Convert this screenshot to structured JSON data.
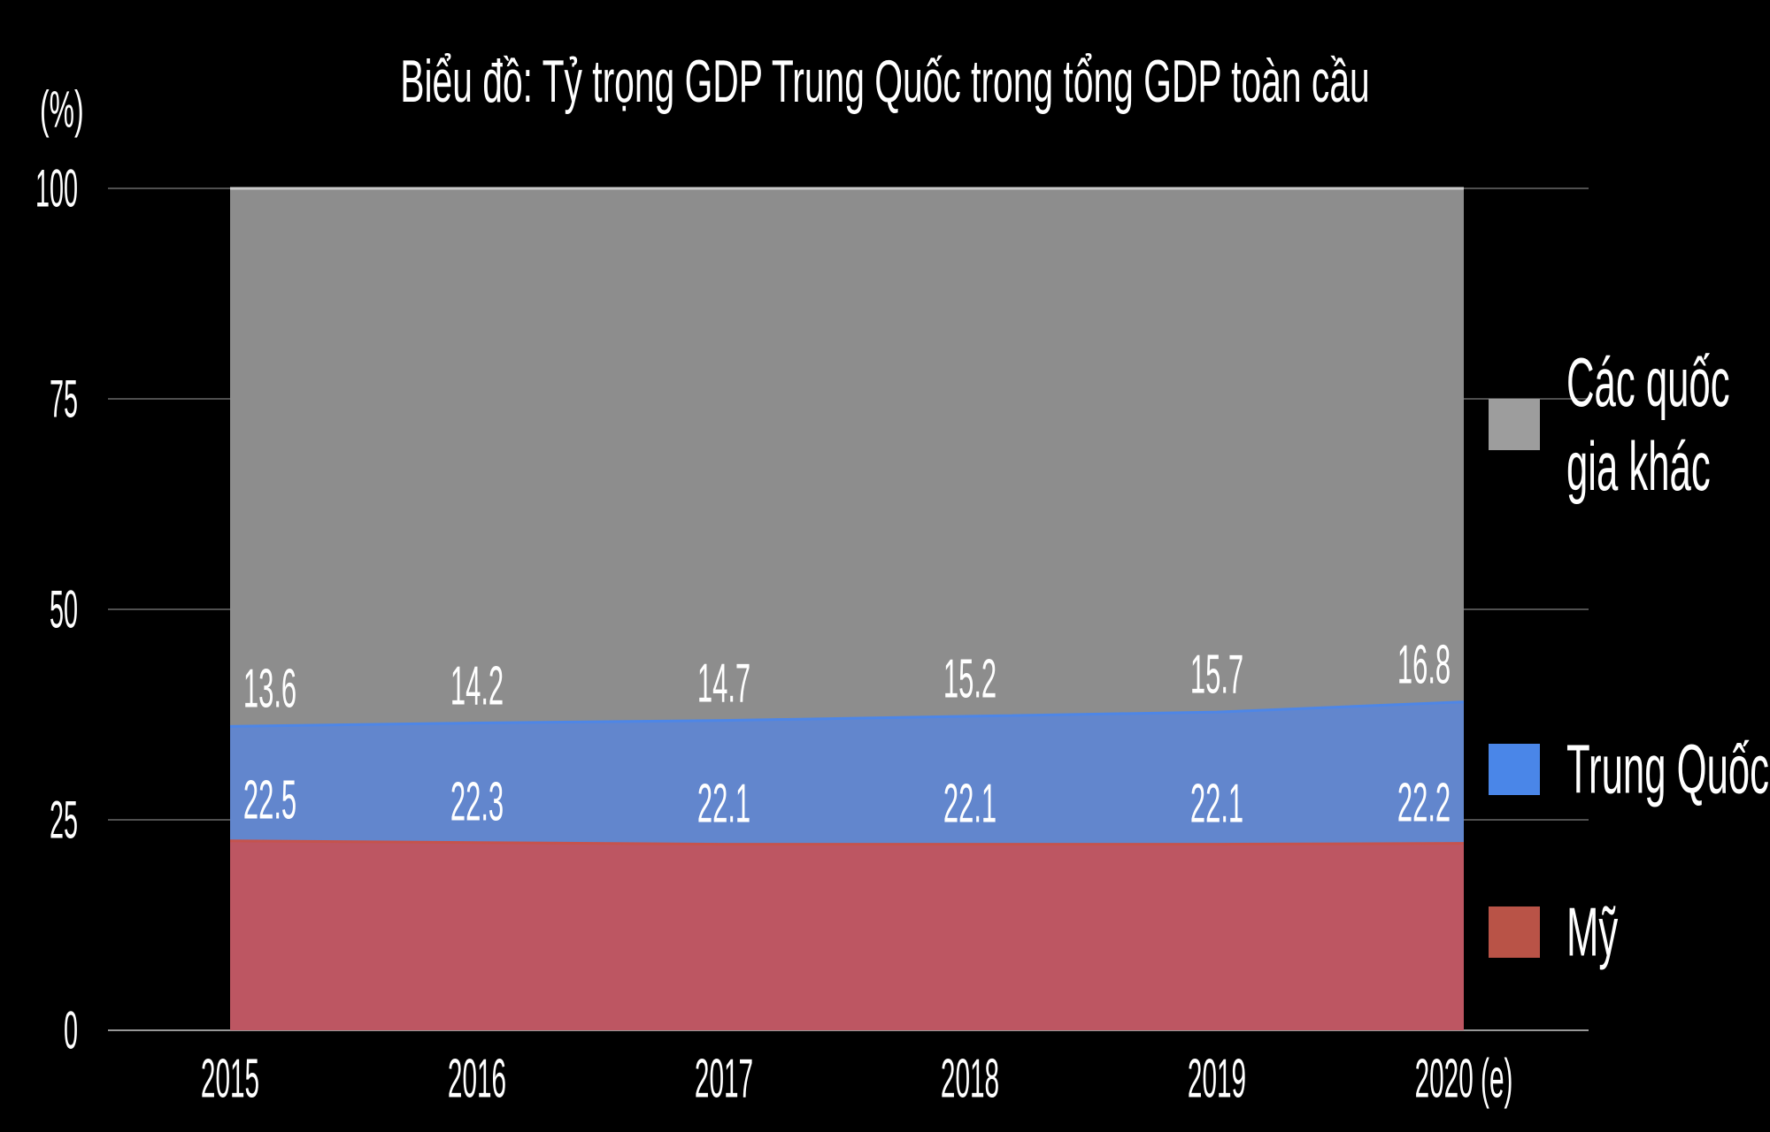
{
  "page": {
    "background": "#000000",
    "text_color": "#ffffff"
  },
  "chart_data": {
    "type": "area",
    "stacked": true,
    "title": "Biểu đồ: Tỷ trọng GDP Trung Quốc trong tổng GDP toàn cầu",
    "unit_label": "(%)",
    "categories": [
      "2015",
      "2016",
      "2017",
      "2018",
      "2019",
      "2020 (e)"
    ],
    "series": [
      {
        "name": "Mỹ",
        "values": [
          22.5,
          22.3,
          22.1,
          22.1,
          22.1,
          22.2
        ],
        "fill": "#bd5662",
        "stroke": "#c5534d",
        "legend_color": "#b95347",
        "legend_lines": [
          "Mỹ"
        ],
        "show_value_labels": true
      },
      {
        "name": "Trung Quốc",
        "values": [
          13.6,
          14.2,
          14.7,
          15.2,
          15.7,
          16.8
        ],
        "fill": "#6286cd",
        "stroke": "#4e86e6",
        "legend_color": "#4a86e8",
        "legend_lines": [
          "Trung Quốc"
        ],
        "show_value_labels": true
      },
      {
        "name": "Các quốc gia khác",
        "values": [
          63.9,
          63.5,
          63.2,
          62.7,
          62.2,
          61.0
        ],
        "fill": "#8d8d8d",
        "stroke": "#c9c9c9",
        "legend_color": "#9d9d9d",
        "legend_lines": [
          "Các quốc",
          "gia khác"
        ],
        "show_value_labels": false
      }
    ],
    "ylim": [
      0,
      100
    ],
    "yticks": [
      0,
      25,
      50,
      75,
      100
    ],
    "grid": true,
    "grid_color": "#4f4f4f",
    "axis_line_color": "#979797",
    "legend_position": "right",
    "value_label_color": "#ffffff"
  }
}
